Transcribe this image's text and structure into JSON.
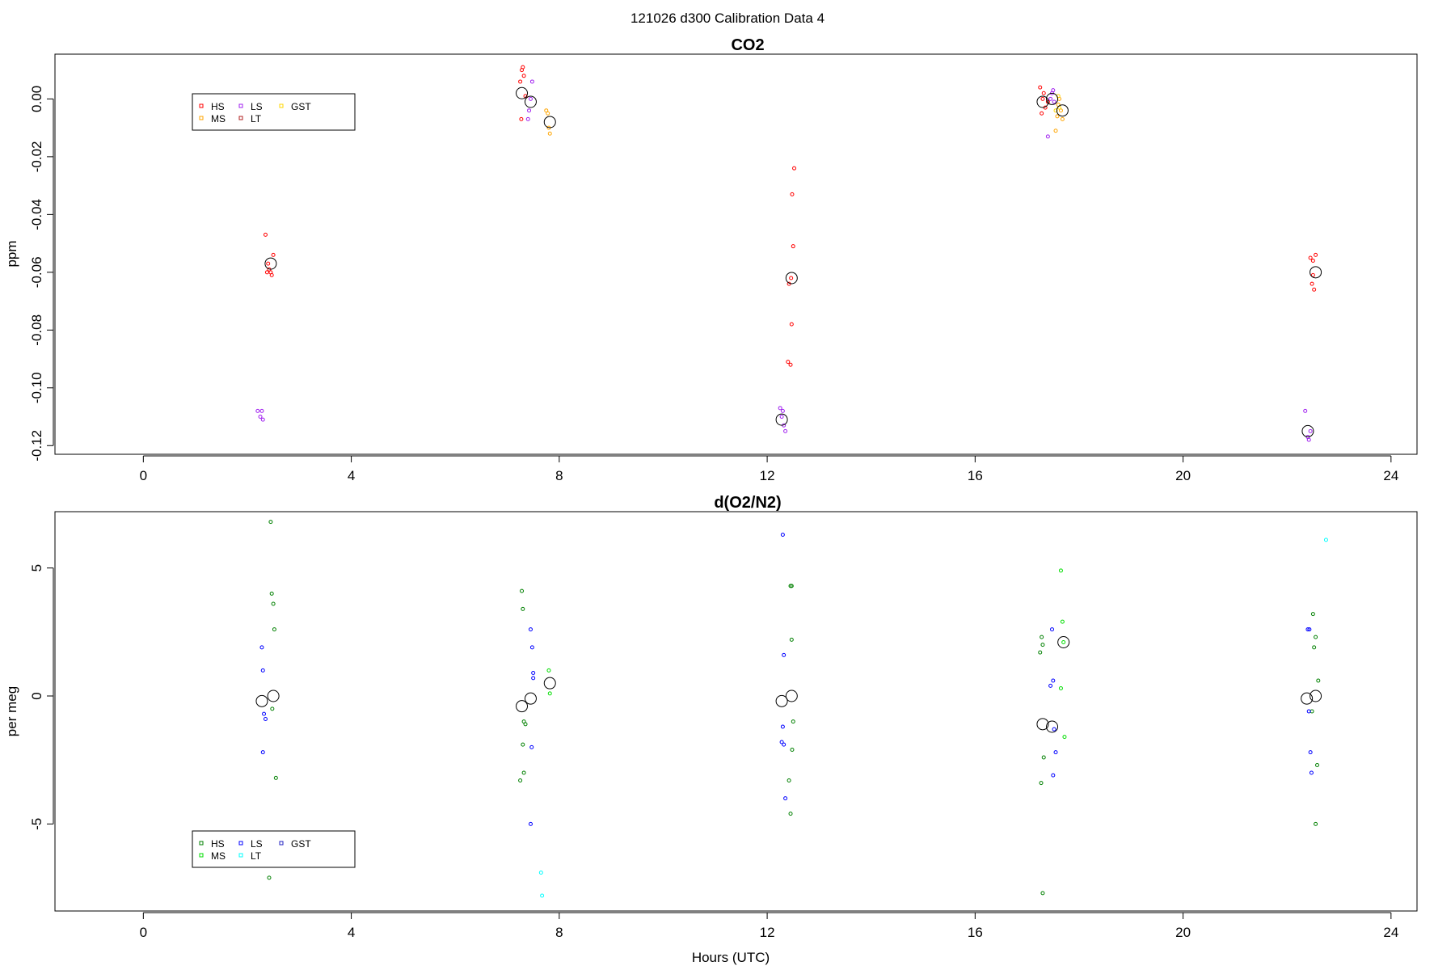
{
  "figure": {
    "title": "121026   d300   Calibration Data 4"
  },
  "chart_data": [
    {
      "type": "scatter",
      "title": "CO2",
      "xlabel": "",
      "ylabel": "ppm",
      "xlim": [
        -1.7,
        24.5
      ],
      "ylim": [
        -0.123,
        0.0155
      ],
      "xticks": [
        "0",
        "4",
        "8",
        "12",
        "16",
        "20",
        "24"
      ],
      "xtick_values": [
        0,
        4,
        8,
        12,
        16,
        20,
        24
      ],
      "yticks": [
        "-0.12",
        "-0.10",
        "-0.08",
        "-0.06",
        "-0.04",
        "-0.02",
        "0.00"
      ],
      "ytick_values": [
        -0.12,
        -0.1,
        -0.08,
        -0.06,
        -0.04,
        -0.02,
        0.0
      ],
      "grid": false,
      "legend": {
        "placement": "top-left",
        "items": [
          {
            "label": "HS",
            "color": "#ff0000"
          },
          {
            "label": "MS",
            "color": "#ffa500"
          },
          {
            "label": "LS",
            "color": "#a020f0"
          },
          {
            "label": "LT",
            "color": "#b22222"
          },
          {
            "label": "GST",
            "color": "#ffd700"
          }
        ]
      },
      "series": [
        {
          "name": "HS",
          "color": "#ff0000",
          "x": [
            2.35,
            2.4,
            2.42,
            2.45,
            2.47,
            2.5,
            2.38,
            7.25,
            7.28,
            7.3,
            7.32,
            7.35,
            7.27,
            12.4,
            12.45,
            12.47,
            12.5,
            12.52,
            12.48,
            12.42,
            12.46,
            17.25,
            17.3,
            17.35,
            17.28,
            17.32,
            17.4,
            22.45,
            22.5,
            22.55,
            22.52,
            22.48,
            22.5
          ],
          "y": [
            -0.047,
            -0.057,
            -0.059,
            -0.06,
            -0.061,
            -0.054,
            -0.06,
            0.006,
            0.01,
            0.011,
            0.008,
            0.001,
            -0.007,
            -0.091,
            -0.092,
            -0.078,
            -0.051,
            -0.024,
            -0.033,
            -0.064,
            -0.062,
            0.004,
            0.0,
            -0.003,
            -0.005,
            0.002,
            -0.001,
            -0.055,
            -0.061,
            -0.054,
            -0.066,
            -0.064,
            -0.056
          ]
        },
        {
          "name": "MS",
          "color": "#ffa500",
          "x": [
            7.75,
            7.8,
            7.82,
            7.78,
            17.55,
            17.6,
            17.62,
            17.58,
            17.65,
            17.68
          ],
          "y": [
            -0.004,
            -0.01,
            -0.012,
            -0.005,
            -0.011,
            -0.002,
            0.0,
            -0.006,
            -0.004,
            -0.007
          ]
        },
        {
          "name": "LS",
          "color": "#a020f0",
          "x": [
            2.2,
            2.25,
            2.28,
            2.3,
            7.4,
            7.45,
            7.48,
            7.42,
            12.25,
            12.3,
            12.32,
            12.35,
            12.28,
            17.4,
            17.45,
            17.5,
            17.48,
            17.52,
            22.35,
            22.4,
            22.42,
            22.45
          ],
          "y": [
            -0.108,
            -0.11,
            -0.108,
            -0.111,
            -0.007,
            0.0,
            0.006,
            -0.004,
            -0.107,
            -0.108,
            -0.113,
            -0.115,
            -0.11,
            -0.013,
            0.0,
            0.003,
            0.002,
            -0.001,
            -0.108,
            -0.117,
            -0.118,
            -0.115
          ]
        },
        {
          "name": "GST",
          "color": "#ffd700",
          "x": [
            17.55,
            17.6,
            17.62
          ],
          "y": [
            -0.004,
            0.001,
            -0.003
          ]
        }
      ],
      "means": {
        "x": [
          2.45,
          7.28,
          7.45,
          7.82,
          12.47,
          12.28,
          17.3,
          17.48,
          17.68,
          22.55,
          22.4
        ],
        "y": [
          -0.057,
          0.002,
          -0.001,
          -0.008,
          -0.062,
          -0.111,
          -0.001,
          0.0,
          -0.004,
          -0.06,
          -0.115
        ]
      }
    },
    {
      "type": "scatter",
      "title": "d(O2/N2)",
      "xlabel": "Hours (UTC)",
      "ylabel": "per meg",
      "xlim": [
        -1.7,
        24.5
      ],
      "ylim": [
        -8.4,
        7.2
      ],
      "xticks": [
        "0",
        "4",
        "8",
        "12",
        "16",
        "20",
        "24"
      ],
      "xtick_values": [
        0,
        4,
        8,
        12,
        16,
        20,
        24
      ],
      "yticks": [
        "-5",
        "0",
        "5"
      ],
      "ytick_values": [
        -5,
        0,
        5
      ],
      "grid": false,
      "legend": {
        "placement": "bottom-left",
        "items": [
          {
            "label": "HS",
            "color": "#008000"
          },
          {
            "label": "MS",
            "color": "#00dd00"
          },
          {
            "label": "LS",
            "color": "#0000ff"
          },
          {
            "label": "LT",
            "color": "#00ffff"
          },
          {
            "label": "GST",
            "color": "#2020c0"
          }
        ]
      },
      "series": [
        {
          "name": "HS",
          "color": "#008000",
          "x": [
            2.45,
            2.47,
            2.5,
            2.52,
            2.48,
            2.55,
            2.42,
            7.28,
            7.3,
            7.32,
            7.35,
            7.3,
            7.32,
            7.25,
            12.45,
            12.47,
            12.5,
            12.48,
            12.42,
            12.45,
            12.47,
            17.25,
            17.3,
            17.28,
            17.32,
            17.27,
            17.3,
            22.5,
            22.55,
            22.52,
            22.6,
            22.48,
            22.58,
            22.55
          ],
          "y": [
            6.8,
            4.0,
            3.6,
            2.6,
            -0.5,
            -3.2,
            -7.1,
            4.1,
            3.4,
            -1.0,
            -1.1,
            -1.9,
            -3.0,
            -3.3,
            4.3,
            2.2,
            -1.0,
            -2.1,
            -3.3,
            -4.6,
            4.3,
            1.7,
            2.0,
            2.3,
            -2.4,
            -3.4,
            -7.7,
            3.2,
            2.3,
            1.9,
            0.6,
            -0.6,
            -2.7,
            -5.0
          ]
        },
        {
          "name": "MS",
          "color": "#00dd00",
          "x": [
            7.8,
            7.82,
            17.65,
            17.68,
            17.7,
            17.72,
            17.65
          ],
          "y": [
            1.0,
            0.1,
            4.9,
            2.9,
            2.1,
            -1.6,
            0.3
          ]
        },
        {
          "name": "LS",
          "color": "#0000ff",
          "x": [
            2.28,
            2.3,
            2.32,
            2.35,
            2.3,
            7.45,
            7.48,
            7.5,
            7.5,
            7.47,
            7.45,
            12.3,
            12.32,
            12.3,
            12.28,
            12.32,
            12.35,
            17.45,
            17.5,
            17.52,
            17.55,
            17.5,
            17.48,
            22.4,
            22.42,
            22.45,
            22.47,
            22.43
          ],
          "y": [
            1.9,
            1.0,
            -0.7,
            -0.9,
            -2.2,
            2.6,
            1.9,
            0.9,
            0.7,
            -2.0,
            -5.0,
            6.3,
            1.6,
            -1.2,
            -1.8,
            -1.9,
            -4.0,
            0.4,
            0.6,
            -1.3,
            -2.2,
            -3.1,
            2.6,
            2.6,
            -0.6,
            -2.2,
            -3.0,
            2.6
          ]
        },
        {
          "name": "LT",
          "color": "#00ffff",
          "x": [
            7.65,
            7.67,
            22.75
          ],
          "y": [
            -6.9,
            -7.8,
            6.1
          ]
        }
      ],
      "means": {
        "x": [
          2.28,
          2.5,
          7.28,
          7.45,
          7.82,
          12.28,
          12.47,
          17.3,
          17.48,
          17.7,
          22.38,
          22.55
        ],
        "y": [
          -0.2,
          0.0,
          -0.4,
          -0.1,
          0.5,
          -0.2,
          0.0,
          -1.1,
          -1.2,
          2.1,
          -0.1,
          0.0
        ]
      }
    }
  ]
}
